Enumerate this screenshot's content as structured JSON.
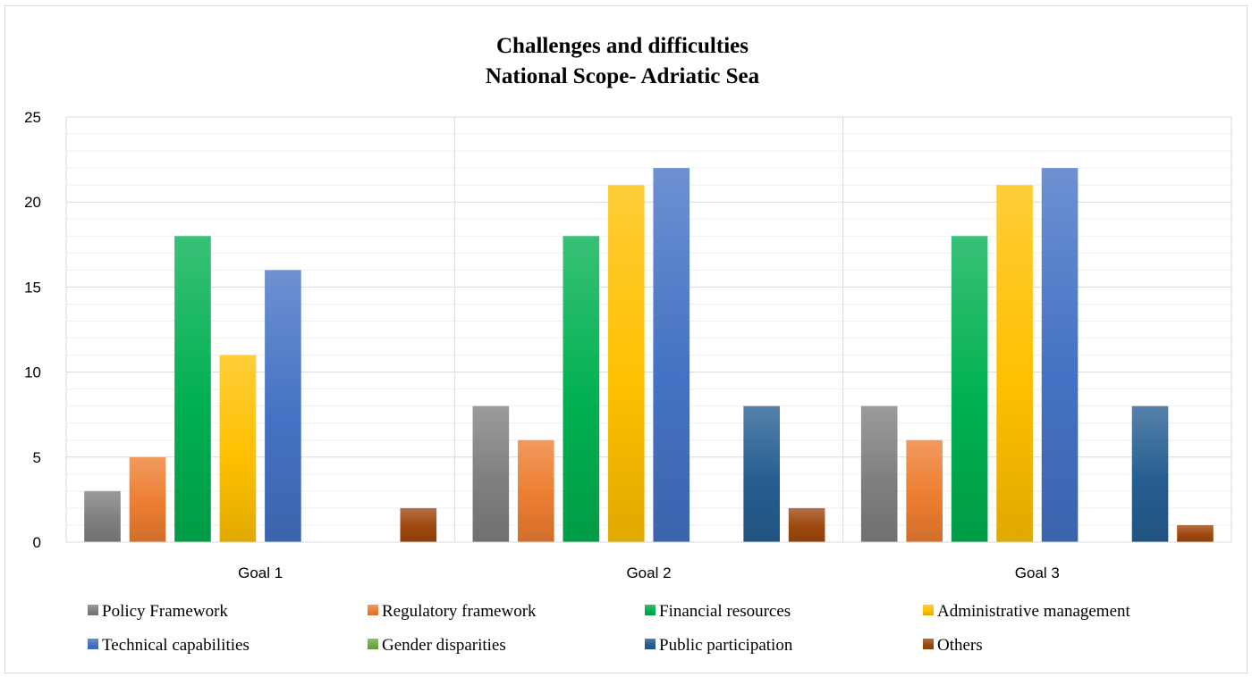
{
  "chart_data": {
    "type": "bar",
    "title": "Challenges and difficulties",
    "subtitle": "National Scope- Adriatic Sea",
    "xlabel": "",
    "ylabel": "",
    "categories": [
      "Goal 1",
      "Goal 2",
      "Goal 3"
    ],
    "ylim": [
      0,
      25
    ],
    "yticks": [
      0,
      5,
      10,
      15,
      20,
      25
    ],
    "ytick_labels": [
      "0",
      "5",
      "10",
      "15",
      "20",
      "25"
    ],
    "grid": true,
    "legend_position": "bottom",
    "series": [
      {
        "name": "Policy Framework",
        "color": "#7f7f7f",
        "values": [
          3,
          8,
          8
        ]
      },
      {
        "name": "Regulatory framework",
        "color": "#ed7d31",
        "values": [
          5,
          6,
          6
        ]
      },
      {
        "name": "Financial resources",
        "color": "#00b050",
        "values": [
          18,
          18,
          18
        ]
      },
      {
        "name": "Administrative management",
        "color": "#ffc000",
        "values": [
          11,
          21,
          21
        ]
      },
      {
        "name": "Technical capabilities",
        "color": "#4472c4",
        "values": [
          16,
          22,
          22
        ]
      },
      {
        "name": "Gender disparities",
        "color": "#70ad47",
        "values": [
          0,
          0,
          0
        ]
      },
      {
        "name": "Public participation",
        "color": "#255e91",
        "values": [
          0,
          8,
          8
        ]
      },
      {
        "name": "Others",
        "color": "#9e480e",
        "values": [
          2,
          2,
          1
        ]
      }
    ]
  }
}
